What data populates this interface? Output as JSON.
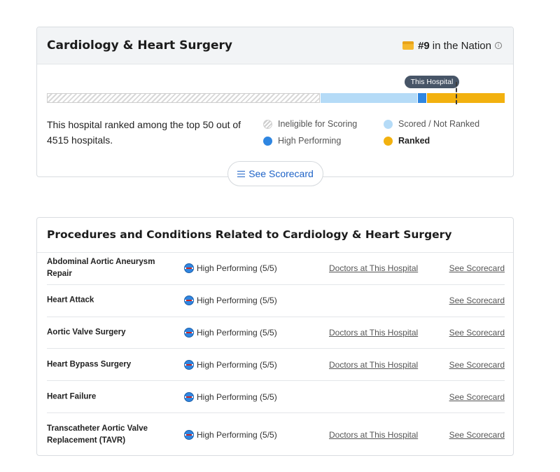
{
  "specialty_card": {
    "title": "Cardiology & Heart Surgery",
    "rank_number": "#9",
    "rank_text": "in the Nation",
    "info_icon": "info-icon",
    "this_hospital_label": "This Hospital",
    "summary": "This hospital ranked among the top 50 out of 4515 hospitals.",
    "legend": {
      "ineligible": "Ineligible for Scoring",
      "scored": "Scored / Not Ranked",
      "high": "High Performing",
      "ranked": "Ranked"
    },
    "scorecard_button": "See Scorecard",
    "colors": {
      "scored": "#b5dbf7",
      "high": "#2f86e1",
      "ranked": "#f2b10f",
      "link": "#1e63c7"
    }
  },
  "procedures_card": {
    "title": "Procedures and Conditions Related to Cardiology & Heart Surgery",
    "rows": [
      {
        "name": "Abdominal Aortic Aneurysm Repair",
        "rating": "High Performing (5/5)",
        "doctors": "Doctors at This Hospital",
        "scorecard": "See Scorecard"
      },
      {
        "name": "Heart Attack",
        "rating": "High Performing (5/5)",
        "doctors": "",
        "scorecard": "See Scorecard"
      },
      {
        "name": "Aortic Valve Surgery",
        "rating": "High Performing (5/5)",
        "doctors": "Doctors at This Hospital",
        "scorecard": "See Scorecard"
      },
      {
        "name": "Heart Bypass Surgery",
        "rating": "High Performing (5/5)",
        "doctors": "Doctors at This Hospital",
        "scorecard": "See Scorecard"
      },
      {
        "name": "Heart Failure",
        "rating": "High Performing (5/5)",
        "doctors": "",
        "scorecard": "See Scorecard"
      },
      {
        "name": "Transcatheter Aortic Valve Replacement (TAVR)",
        "rating": "High Performing (5/5)",
        "doctors": "Doctors at This Hospital",
        "scorecard": "See Scorecard"
      }
    ]
  }
}
